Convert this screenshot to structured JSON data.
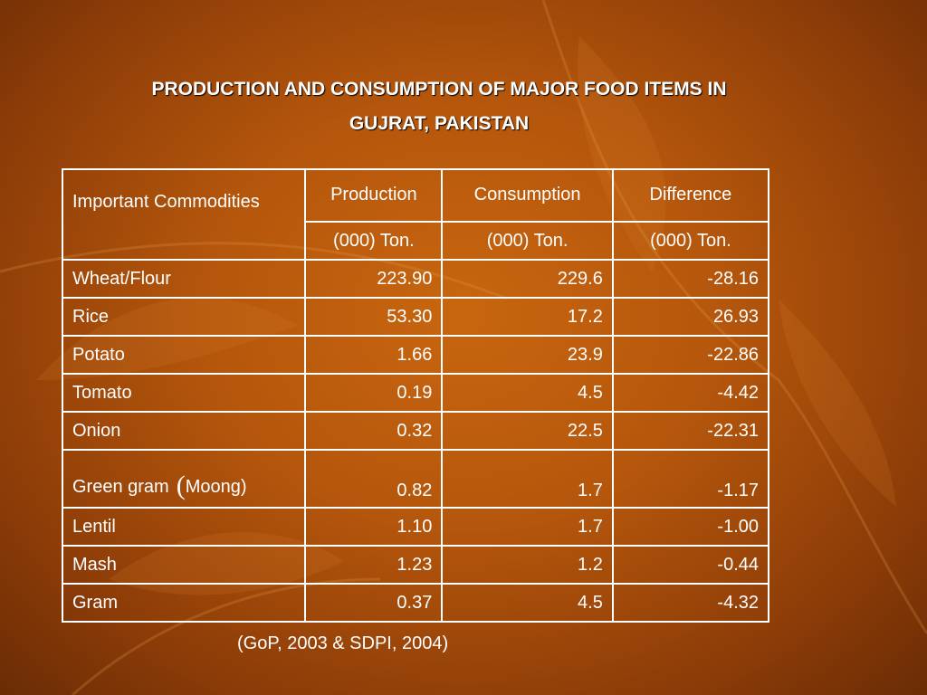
{
  "title": {
    "line1": "PRODUCTION AND CONSUMPTION OF MAJOR FOOD ITEMS IN",
    "line2": "GUJRAT, PAKISTAN"
  },
  "table": {
    "headers": {
      "commodity": "Important Commodities",
      "production": "Production",
      "consumption": "Consumption",
      "difference": "Difference"
    },
    "units": {
      "production": "(000) Ton.",
      "consumption": "(000) Ton.",
      "difference": "(000) Ton."
    },
    "rows": [
      {
        "commodity": "Wheat/Flour",
        "production": "223.90",
        "consumption": "229.6",
        "difference": "-28.16"
      },
      {
        "commodity": "Rice",
        "production": "53.30",
        "consumption": "17.2",
        "difference": "26.93"
      },
      {
        "commodity": "Potato",
        "production": "1.66",
        "consumption": "23.9",
        "difference": "-22.86"
      },
      {
        "commodity": "Tomato",
        "production": "0.19",
        "consumption": "4.5",
        "difference": "-4.42"
      },
      {
        "commodity": "Onion",
        "production": "0.32",
        "consumption": "22.5",
        "difference": "-22.31"
      },
      {
        "commodity": "Green gram",
        "paren": "(",
        "commodity_suffix": "Moong)",
        "production": "0.82",
        "consumption": "1.7",
        "difference": "-1.17"
      },
      {
        "commodity": "Lentil",
        "production": "1.10",
        "consumption": "1.7",
        "difference": "-1.00"
      },
      {
        "commodity": "Mash",
        "production": "1.23",
        "consumption": "1.2",
        "difference": "-0.44"
      },
      {
        "commodity": "Gram",
        "production": "0.37",
        "consumption": "4.5",
        "difference": "-4.32"
      }
    ]
  },
  "source": "(GoP, 2003 & SDPI, 2004)"
}
